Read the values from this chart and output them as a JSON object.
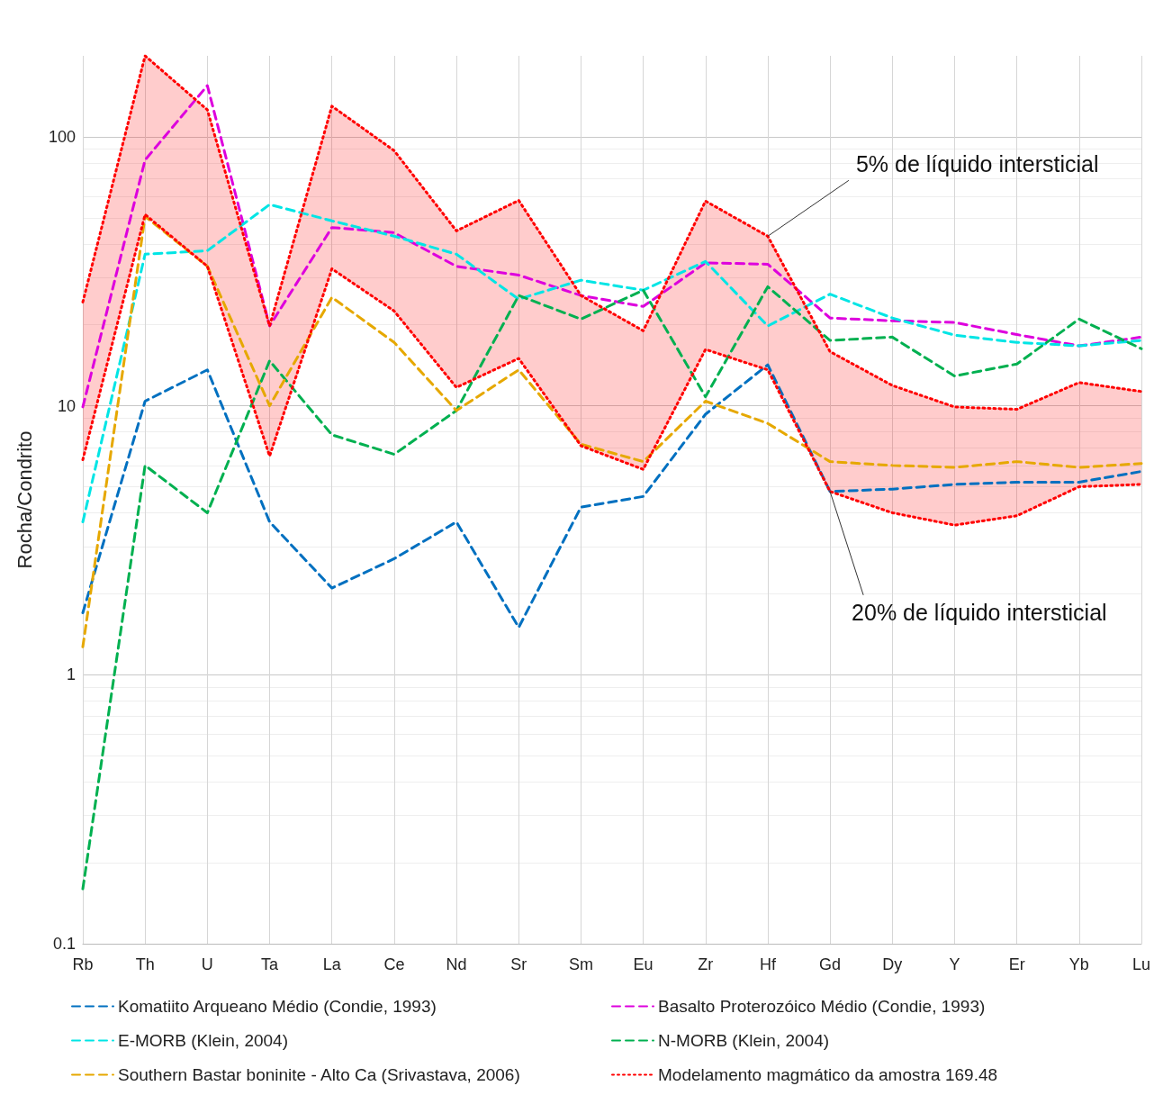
{
  "chart_data": {
    "type": "line",
    "ylabel": "Rocha/Condrito",
    "categories": [
      "Rb",
      "Th",
      "U",
      "Ta",
      "La",
      "Ce",
      "Nd",
      "Sr",
      "Sm",
      "Eu",
      "Zr",
      "Hf",
      "Gd",
      "Dy",
      "Y",
      "Er",
      "Yb",
      "Lu"
    ],
    "series": [
      {
        "name": "Komatiito Arqueano Médio (Condie, 1993)",
        "color": "#0070c0",
        "values": [
          1.7,
          10.4,
          13.6,
          3.7,
          2.1,
          2.7,
          3.7,
          1.5,
          4.2,
          4.6,
          9.3,
          14.2,
          4.8,
          4.9,
          5.1,
          5.2,
          5.2,
          5.7
        ]
      },
      {
        "name": "Basalto Proterozóico Médio (Condie, 1993)",
        "color": "#dd00dd",
        "values": [
          9.9,
          82,
          155,
          19.8,
          46,
          44,
          33,
          30.6,
          25.7,
          23.4,
          34,
          33.6,
          21.2,
          20.7,
          20.4,
          18.4,
          16.7,
          18
        ]
      },
      {
        "name": "E-MORB (Klein, 2004)",
        "color": "#00e5e5",
        "values": [
          3.7,
          36.6,
          37.7,
          56,
          48.7,
          42.7,
          36.6,
          24.9,
          29.3,
          26.9,
          34.4,
          19.8,
          26,
          21.2,
          18.3,
          17.2,
          16.7,
          17.5
        ]
      },
      {
        "name": "N-MORB (Klein, 2004)",
        "color": "#00b050",
        "values": [
          0.16,
          6,
          4,
          14.7,
          7.8,
          6.6,
          9.6,
          25.7,
          21,
          26.9,
          10.8,
          27.7,
          17.5,
          18,
          12.9,
          14.3,
          21,
          16.3
        ]
      },
      {
        "name": "Southern Bastar boninite - Alto Ca (Srivastava, 2006)",
        "color": "#e6a800",
        "values": [
          1.27,
          50.6,
          33,
          10,
          25.3,
          17.2,
          9.6,
          13.6,
          7.2,
          6.2,
          10.4,
          8.6,
          6.2,
          6,
          5.9,
          6.2,
          5.9,
          6.1
        ]
      },
      {
        "name": "Modelamento magmático da amostra 169.48",
        "color": "#ff0000",
        "line_style": "dotted",
        "values": [
          24.3,
          200,
          126,
          19.8,
          130,
          88.8,
          44.7,
          58,
          25.7,
          19,
          57.7,
          42.7,
          15.9,
          11.9,
          9.9,
          9.7,
          12.2,
          11.3
        ],
        "upper": [
          24.3,
          200,
          126,
          19.8,
          130,
          88.8,
          44.7,
          58,
          25.7,
          19,
          57.7,
          42.7,
          15.9,
          11.9,
          9.9,
          9.7,
          12.2,
          11.3
        ],
        "lower": [
          6.3,
          51.4,
          33,
          6.5,
          32.3,
          22.5,
          11.7,
          15,
          7.1,
          5.8,
          16.2,
          13.6,
          4.8,
          4,
          3.6,
          3.9,
          5,
          5.1
        ]
      },
      {
        "color": "#ff0000",
        "line_style": "dotted",
        "values": [
          6.3,
          51.4,
          33,
          6.5,
          32.3,
          22.5,
          11.7,
          15,
          7.1,
          5.8,
          16.2,
          13.6,
          4.8,
          4,
          3.6,
          3.9,
          5,
          5.1
        ]
      }
    ],
    "annotations": [
      {
        "text": "5% de líquido intersticial",
        "x": "Hf",
        "y": 42.7
      },
      {
        "text": "20% de líquido intersticial",
        "x": "Gd",
        "y": 4.8
      }
    ],
    "log": "y",
    "ylim": [
      0.1,
      200
    ],
    "yticks": [
      0.1,
      1,
      10,
      100
    ],
    "grid": true,
    "legend": "bottom",
    "marker": "none",
    "line_style": "dashed"
  }
}
